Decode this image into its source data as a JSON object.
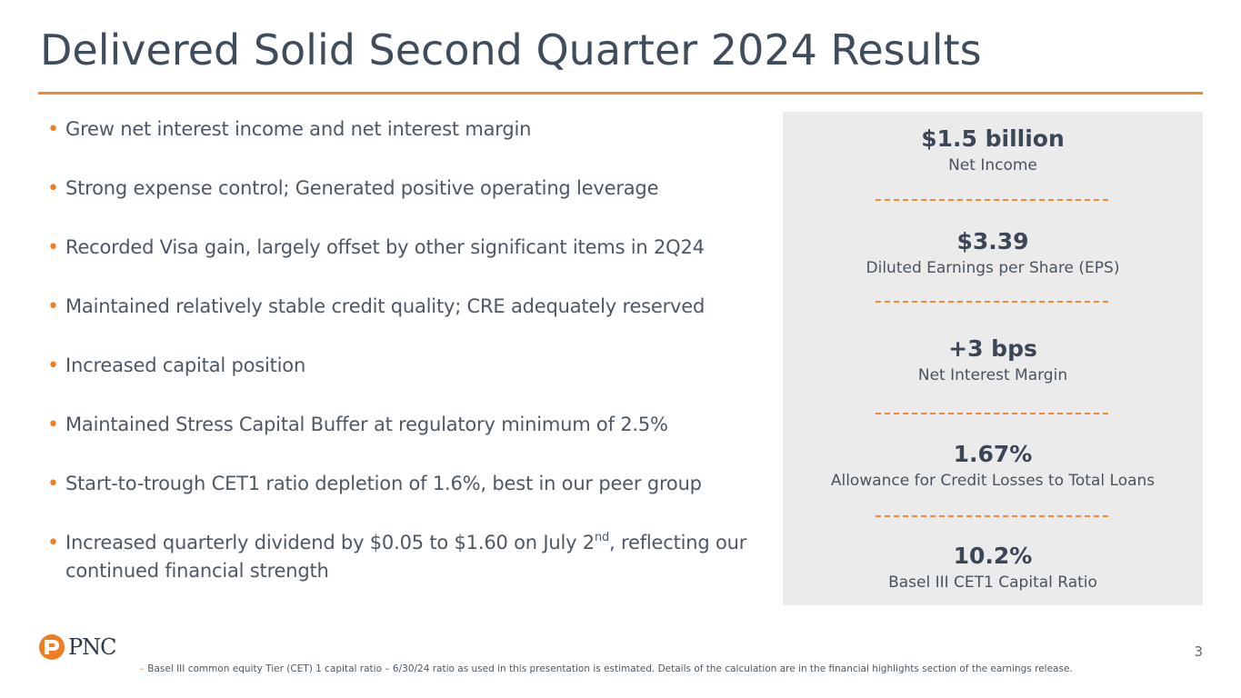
{
  "slide": {
    "title": "Delivered Solid Second Quarter 2024 Results",
    "page_number": "3"
  },
  "bullets": [
    {
      "text": "Grew net interest income and net interest margin"
    },
    {
      "text": "Strong expense control; Generated positive operating leverage"
    },
    {
      "text": "Recorded Visa gain, largely offset by other significant items in 2Q24"
    },
    {
      "text": "Maintained relatively stable credit quality; CRE adequately reserved"
    },
    {
      "text": "Increased capital position"
    },
    {
      "text": "Maintained Stress Capital Buffer at regulatory minimum of 2.5%"
    },
    {
      "text": "Start-to-trough CET1 ratio depletion of 1.6%, best in our peer group"
    },
    {
      "text_before": "Increased quarterly dividend by $0.05 to $1.60 on July 2",
      "superscript": "nd",
      "text_after": ", reflecting our continued financial strength"
    }
  ],
  "metrics": [
    {
      "value": "$1.5 billion",
      "label": "Net Income"
    },
    {
      "value": "$3.39",
      "label": "Diluted Earnings per Share (EPS)"
    },
    {
      "value": "+3 bps",
      "label": "Net Interest Margin"
    },
    {
      "value": "1.67%",
      "label": "Allowance for Credit Losses to Total Loans"
    },
    {
      "value": "10.2%",
      "label": "Basel III CET1 Capital Ratio"
    }
  ],
  "logo": {
    "text": "PNC",
    "mark_icon": "pnc-logo-mark-icon"
  },
  "footnote": {
    "marker": "–",
    "text": "Basel III common equity Tier (CET) 1 capital ratio – 6/30/24 ratio as used in this presentation is estimated. Details of the calculation are in the financial highlights section of the earnings release."
  },
  "colors": {
    "accent": "#ef8a2d",
    "title": "#3f4c5b",
    "panel_bg": "#ebebeb",
    "text": "#4e5864"
  }
}
